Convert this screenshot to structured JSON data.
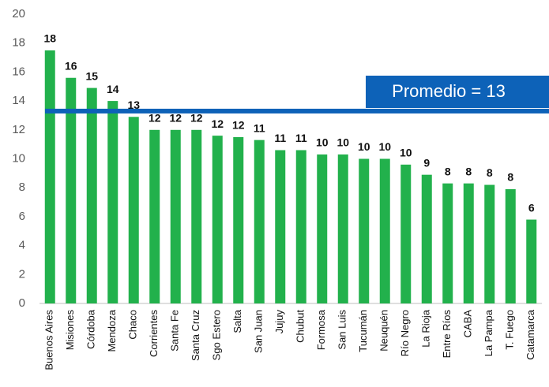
{
  "chart_data": {
    "type": "bar",
    "categories": [
      "Buenos Aires",
      "Misiones",
      "Córdoba",
      "Mendoza",
      "Chaco",
      "Corrientes",
      "Santa Fe",
      "Santa Cruz",
      "Sgo Estero",
      "Salta",
      "San Juan",
      "Jujuy",
      "Chubut",
      "Formosa",
      "San Luis",
      "Tucumán",
      "Neuquén",
      "Río Negro",
      "La Rioja",
      "Entre Ríos",
      "CABA",
      "La Pampa",
      "T. Fuego",
      "Catamarca"
    ],
    "values": [
      17.5,
      15.6,
      14.9,
      14.0,
      12.9,
      12.0,
      12.0,
      12.0,
      11.6,
      11.5,
      11.3,
      10.6,
      10.6,
      10.3,
      10.3,
      10.0,
      10.0,
      9.6,
      8.9,
      8.3,
      8.3,
      8.2,
      7.9,
      5.8
    ],
    "value_labels": [
      "18",
      "16",
      "15",
      "14",
      "13",
      "12",
      "12",
      "12",
      "12",
      "12",
      "11",
      "11",
      "11",
      "10",
      "10",
      "10",
      "10",
      "10",
      "9",
      "8",
      "8",
      "8",
      "8",
      "6"
    ],
    "color": "#22b14c",
    "ylim": [
      0,
      20
    ],
    "yticks": [
      0,
      2,
      4,
      6,
      8,
      10,
      12,
      14,
      16,
      18,
      20
    ],
    "grid": false,
    "average": 13.3,
    "average_label": "Promedio = 13",
    "average_color": "#0d62b8"
  }
}
